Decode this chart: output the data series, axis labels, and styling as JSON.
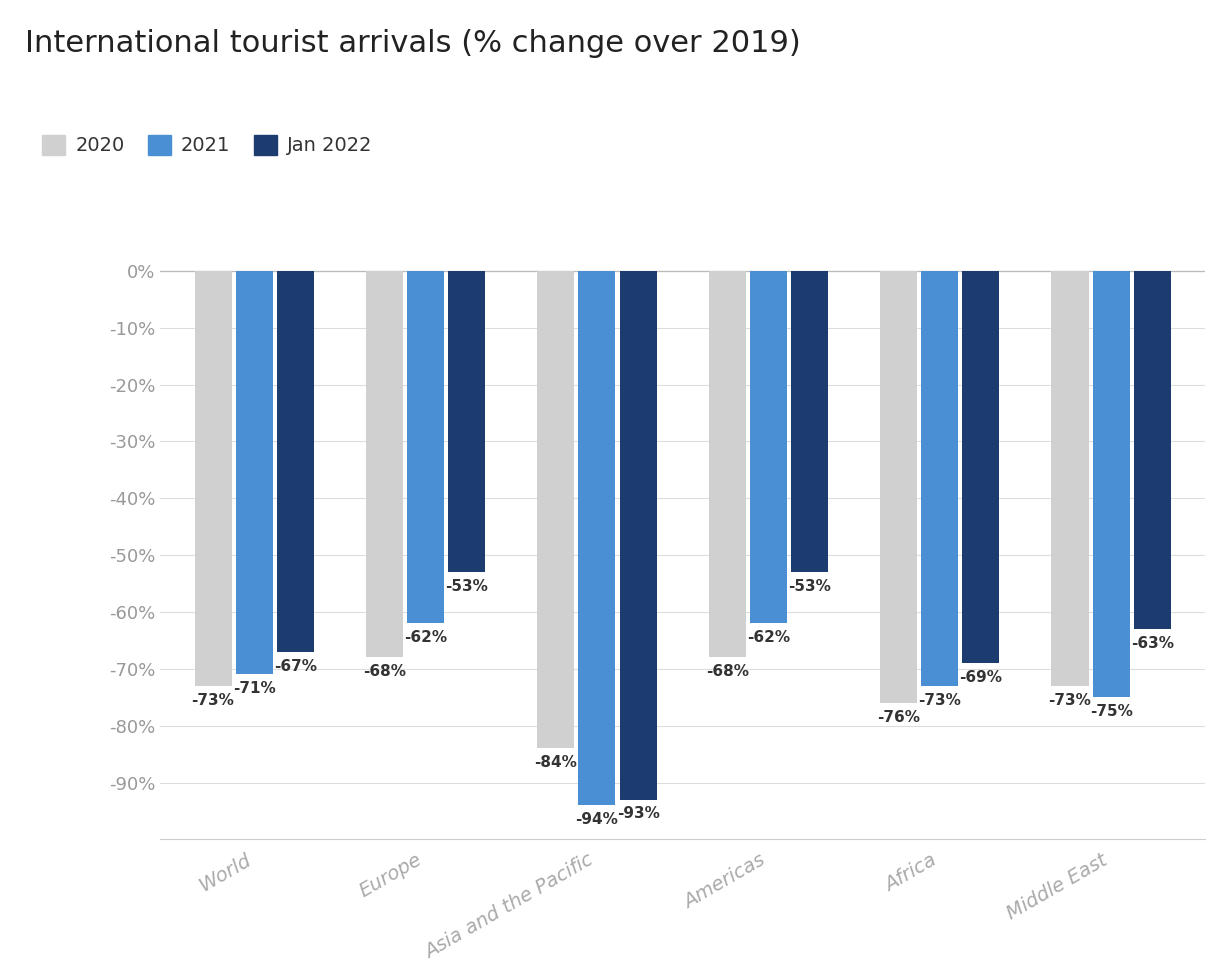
{
  "title": "International tourist arrivals (% change over 2019)",
  "categories": [
    "World",
    "Europe",
    "Asia and the Pacific",
    "Americas",
    "Africa",
    "Middle East"
  ],
  "series": {
    "2020": [
      -73,
      -68,
      -84,
      -68,
      -76,
      -73
    ],
    "2021": [
      -71,
      -62,
      -94,
      -62,
      -73,
      -75
    ],
    "Jan 2022": [
      -67,
      -53,
      -93,
      -53,
      -69,
      -63
    ]
  },
  "colors": {
    "2020": "#d0d0d0",
    "2021": "#4a8fd4",
    "Jan 2022": "#1c3c70"
  },
  "ylim": [
    -100,
    3
  ],
  "yticks": [
    0,
    -10,
    -20,
    -30,
    -40,
    -50,
    -60,
    -70,
    -80,
    -90
  ],
  "bar_width": 0.24,
  "background_color": "#ffffff",
  "title_fontsize": 22,
  "legend_fontsize": 14,
  "tick_fontsize": 13,
  "axis_label_color": "#999999",
  "bar_label_fontsize": 11,
  "xticklabel_color": "#aaaaaa"
}
